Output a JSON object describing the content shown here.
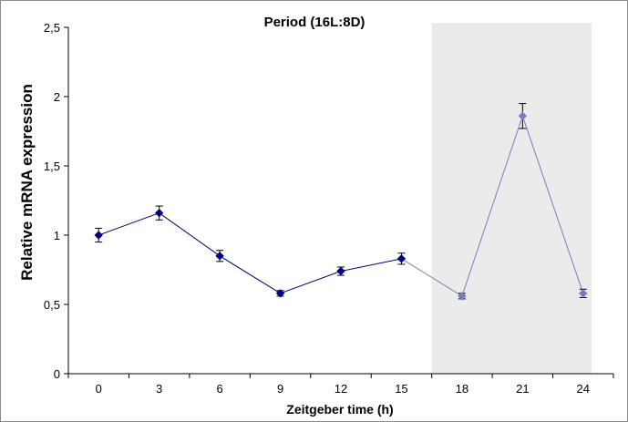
{
  "chart_data": {
    "type": "line",
    "title": "Period (16L:8D)",
    "xlabel": "Zeitgeber time (h)",
    "ylabel": "Relative mRNA expression",
    "categories": [
      "0",
      "3",
      "6",
      "9",
      "12",
      "15",
      "18",
      "21",
      "24"
    ],
    "y_tick_labels": [
      "0",
      "0,5",
      "1",
      "1,5",
      "2",
      "2,5"
    ],
    "y_ticks": [
      0,
      0.5,
      1,
      1.5,
      2,
      2.5
    ],
    "ylim": [
      0,
      2.5
    ],
    "grid": false,
    "legend": "none",
    "series": [
      {
        "values": [
          1.0,
          1.16,
          0.85,
          0.58,
          0.74,
          0.83,
          0.56,
          1.86,
          0.58
        ],
        "errors": [
          0.05,
          0.05,
          0.04,
          0.02,
          0.03,
          0.04,
          0.02,
          0.09,
          0.03
        ],
        "colors": {
          "light": "#00007a",
          "dark": "#7b7bbd"
        }
      }
    ],
    "dark_phase": {
      "from_index": 5.5,
      "to_index": 8.5,
      "color": "#ebebeb"
    }
  }
}
